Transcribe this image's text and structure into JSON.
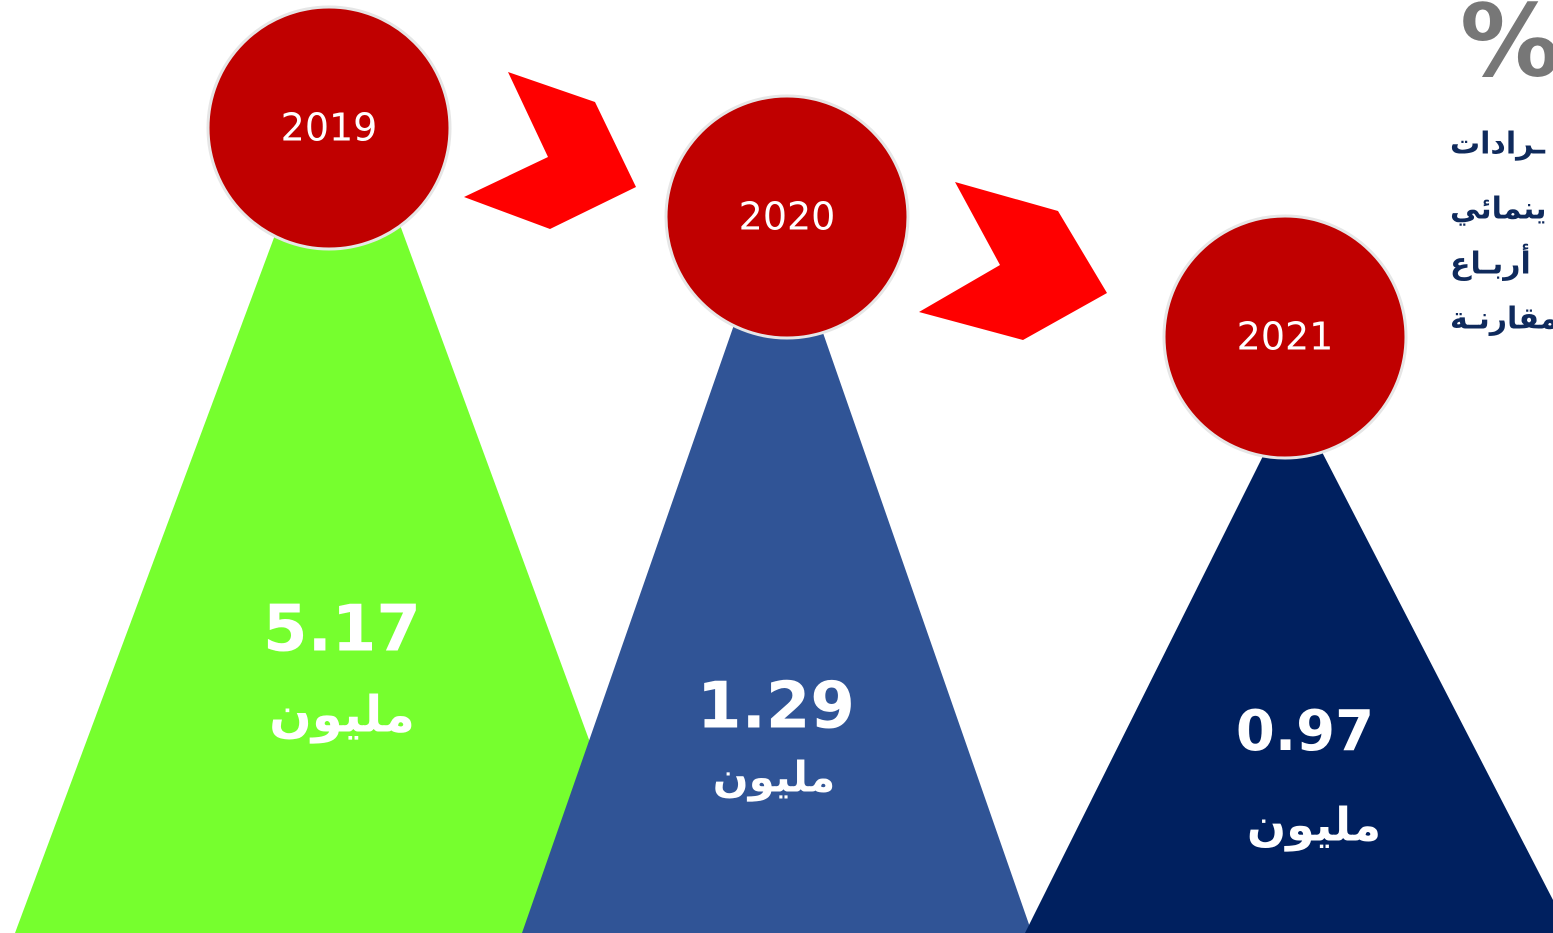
{
  "side_note": {
    "symbol": "%",
    "lines": [
      "ـرادات",
      "ينمائي",
      "أربـاع",
      "مقارنـة"
    ]
  },
  "stages": [
    {
      "year": "2019",
      "value": "5.17",
      "unit": "مليون"
    },
    {
      "year": "2020",
      "value": "1.29",
      "unit": "مليون"
    },
    {
      "year": "2021",
      "value": "0.97",
      "unit": "مليون"
    }
  ]
}
